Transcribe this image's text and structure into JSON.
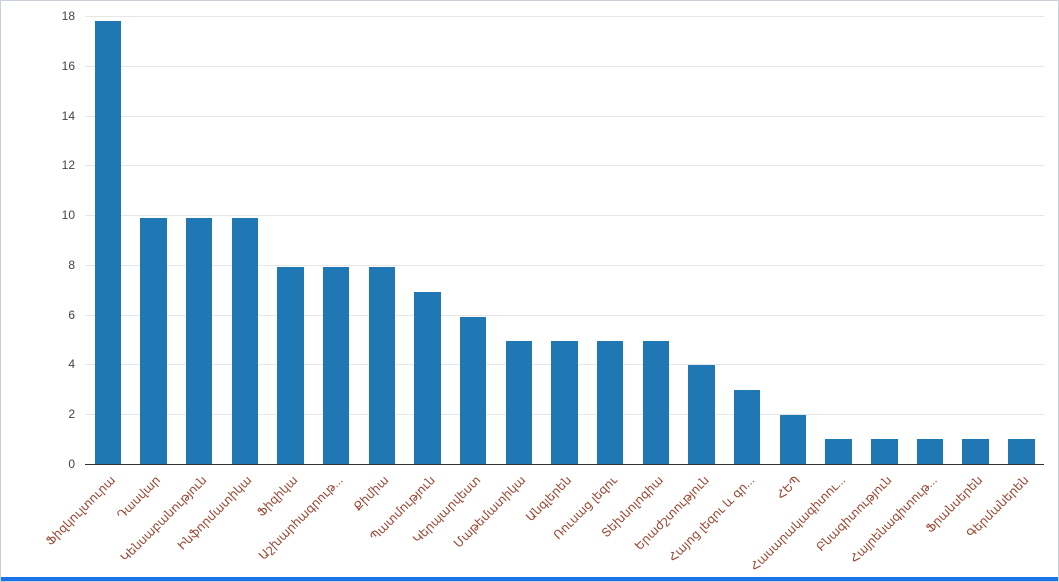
{
  "page": {
    "background": "#ffffff",
    "border_color": "#c8d1da",
    "accent_color": "#1a73e8"
  },
  "chart_data": {
    "type": "bar",
    "title": "",
    "xlabel": "",
    "ylabel": "",
    "categories": [
      "Ֆիզկուլտուրա",
      "Դասվար",
      "Կենսաբանություն",
      "Ինֆորմատիկա",
      "Ֆիզիկա",
      "Աշխարհագրութ...",
      "Քիմիա",
      "Պատմություն",
      "Կերպարվեստ",
      "Մաթեմատիկա",
      "Անգլերեն",
      "Ռուսաց լեզու",
      "Տեխնոլոգիա",
      "Երաժշտություն",
      "Հայոց լեզու և գր...",
      "ՀԵՊ",
      "Հասարակագիտու...",
      "Բնագիտություն",
      "Հայրենագիտութ...",
      "Ֆրանսերեն",
      "Գերմաներեն"
    ],
    "values": [
      17.8,
      9.9,
      9.9,
      9.9,
      7.9,
      7.9,
      7.9,
      6.9,
      5.9,
      4.95,
      4.95,
      4.95,
      4.95,
      3.96,
      2.97,
      1.98,
      0.99,
      0.99,
      0.99,
      0.99,
      0.99
    ],
    "ylim": [
      0,
      18
    ],
    "ytick_step": 2,
    "ytick_labels": [
      "0",
      "2",
      "4",
      "6",
      "8",
      "10",
      "12",
      "14",
      "16",
      "18"
    ],
    "grid": true,
    "legend": "none",
    "bar_color": "#1f77b4",
    "gridline_color": "#e6e6e6",
    "axis_line_color": "#333333",
    "y_label_color": "#444444",
    "x_label_color": "#9a4732"
  }
}
